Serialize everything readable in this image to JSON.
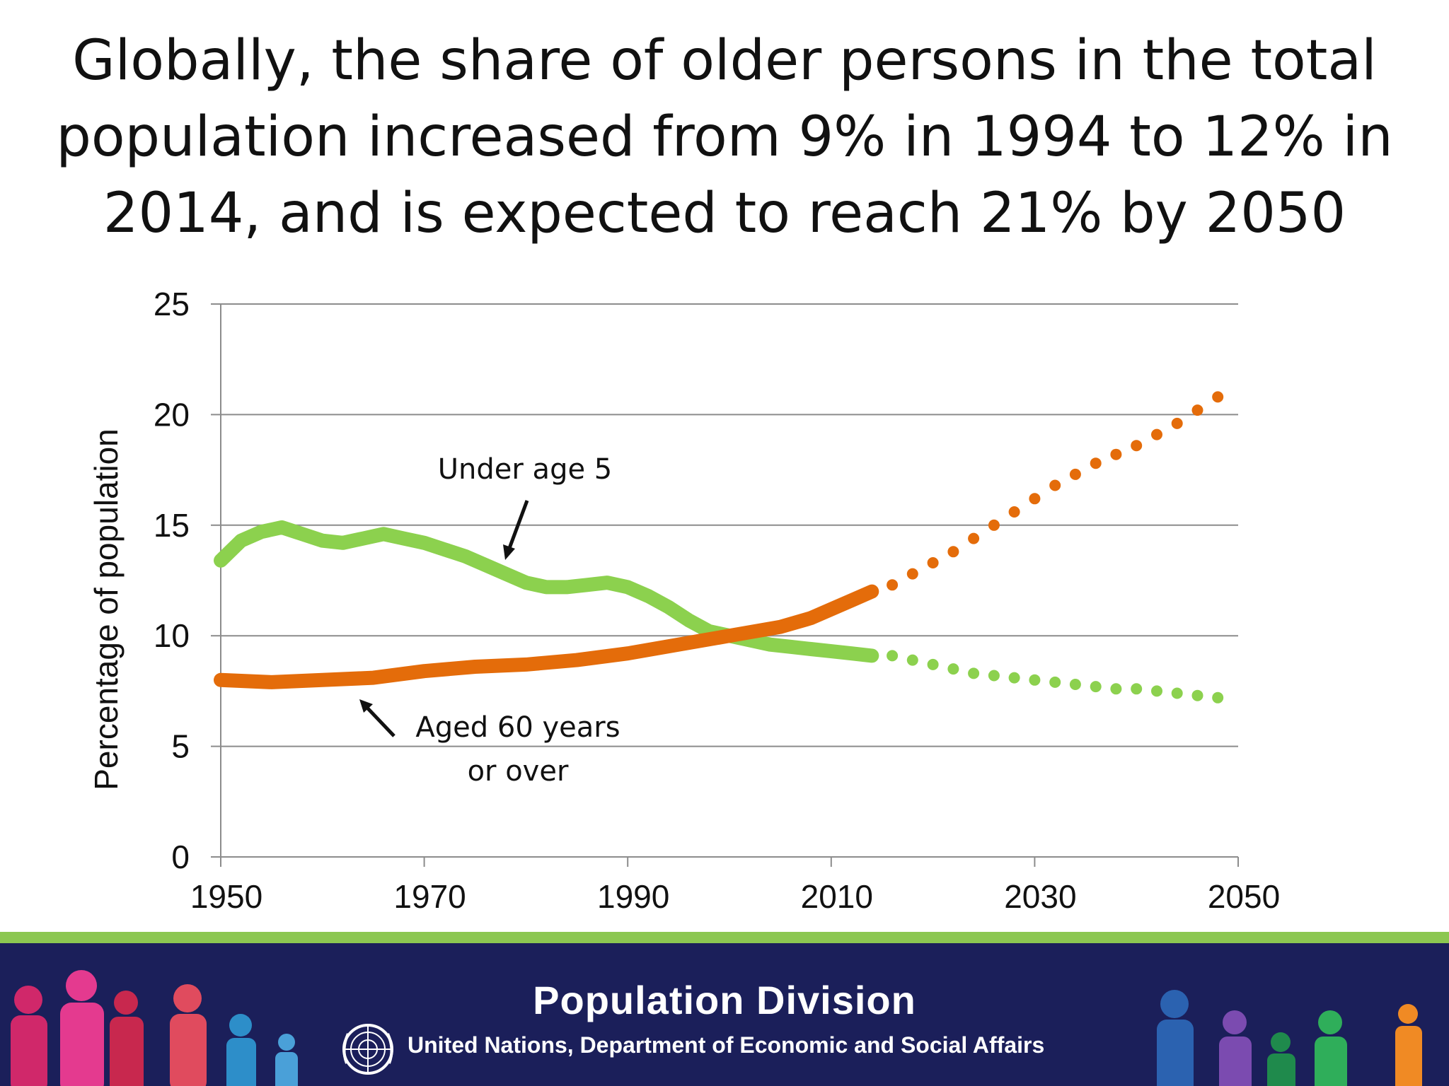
{
  "slide": {
    "title": "Globally, the share of older persons in the total population increased from 9% in 1994 to 12% in 2014, and is expected to reach 21% by 2050"
  },
  "footer": {
    "title": "Population Division",
    "subtitle": "United Nations, Department of Economic and Social Affairs",
    "stripe_color": "#8cc751",
    "background_color": "#1b1f5a"
  },
  "chart_data": {
    "type": "line",
    "title": "",
    "xlabel": "",
    "ylabel": "Percentage of population",
    "xlim": [
      1950,
      2050
    ],
    "ylim": [
      0,
      25
    ],
    "xticks": [
      "1950",
      "1970",
      "1990",
      "2010",
      "2030",
      "2050"
    ],
    "yticks": [
      "0",
      "5",
      "10",
      "15",
      "20",
      "25"
    ],
    "grid": true,
    "annotations": [
      {
        "id": "under5",
        "text": "Under age 5"
      },
      {
        "id": "aged60a",
        "text": "Aged 60 years"
      },
      {
        "id": "aged60b",
        "text": "or over"
      }
    ],
    "series": [
      {
        "name": "Under age 5",
        "color": "#8cd14e",
        "style": "solid",
        "x": [
          1950,
          1952,
          1954,
          1956,
          1958,
          1960,
          1962,
          1964,
          1966,
          1968,
          1970,
          1972,
          1974,
          1976,
          1978,
          1980,
          1982,
          1984,
          1986,
          1988,
          1990,
          1992,
          1994,
          1996,
          1998,
          2000,
          2002,
          2004,
          2006,
          2008,
          2010,
          2012,
          2014
        ],
        "values": [
          13.4,
          14.3,
          14.7,
          14.9,
          14.6,
          14.3,
          14.2,
          14.4,
          14.6,
          14.4,
          14.2,
          13.9,
          13.6,
          13.2,
          12.8,
          12.4,
          12.2,
          12.2,
          12.3,
          12.4,
          12.2,
          11.8,
          11.3,
          10.7,
          10.2,
          10.0,
          9.8,
          9.6,
          9.5,
          9.4,
          9.3,
          9.2,
          9.1
        ]
      },
      {
        "name": "Under age 5",
        "color": "#8cd14e",
        "style": "dotted",
        "x": [
          2016,
          2018,
          2020,
          2022,
          2024,
          2026,
          2028,
          2030,
          2032,
          2034,
          2036,
          2038,
          2040,
          2042,
          2044,
          2046,
          2048
        ],
        "values": [
          9.1,
          8.9,
          8.7,
          8.5,
          8.3,
          8.2,
          8.1,
          8.0,
          7.9,
          7.8,
          7.7,
          7.6,
          7.6,
          7.5,
          7.4,
          7.3,
          7.2
        ]
      },
      {
        "name": "Aged 60 years or over",
        "color": "#e46c0a",
        "style": "solid",
        "x": [
          1950,
          1955,
          1960,
          1965,
          1970,
          1975,
          1980,
          1985,
          1990,
          1995,
          2000,
          2005,
          2008,
          2010,
          2012,
          2014
        ],
        "values": [
          8.0,
          7.9,
          8.0,
          8.1,
          8.4,
          8.6,
          8.7,
          8.9,
          9.2,
          9.6,
          10.0,
          10.4,
          10.8,
          11.2,
          11.6,
          12.0
        ]
      },
      {
        "name": "Aged 60 years or over",
        "color": "#e46c0a",
        "style": "dotted",
        "x": [
          2016,
          2018,
          2020,
          2022,
          2024,
          2026,
          2028,
          2030,
          2032,
          2034,
          2036,
          2038,
          2040,
          2042,
          2044,
          2046,
          2048
        ],
        "values": [
          12.3,
          12.8,
          13.3,
          13.8,
          14.4,
          15.0,
          15.6,
          16.2,
          16.8,
          17.3,
          17.8,
          18.2,
          18.6,
          19.1,
          19.6,
          20.2,
          20.8
        ]
      }
    ]
  }
}
